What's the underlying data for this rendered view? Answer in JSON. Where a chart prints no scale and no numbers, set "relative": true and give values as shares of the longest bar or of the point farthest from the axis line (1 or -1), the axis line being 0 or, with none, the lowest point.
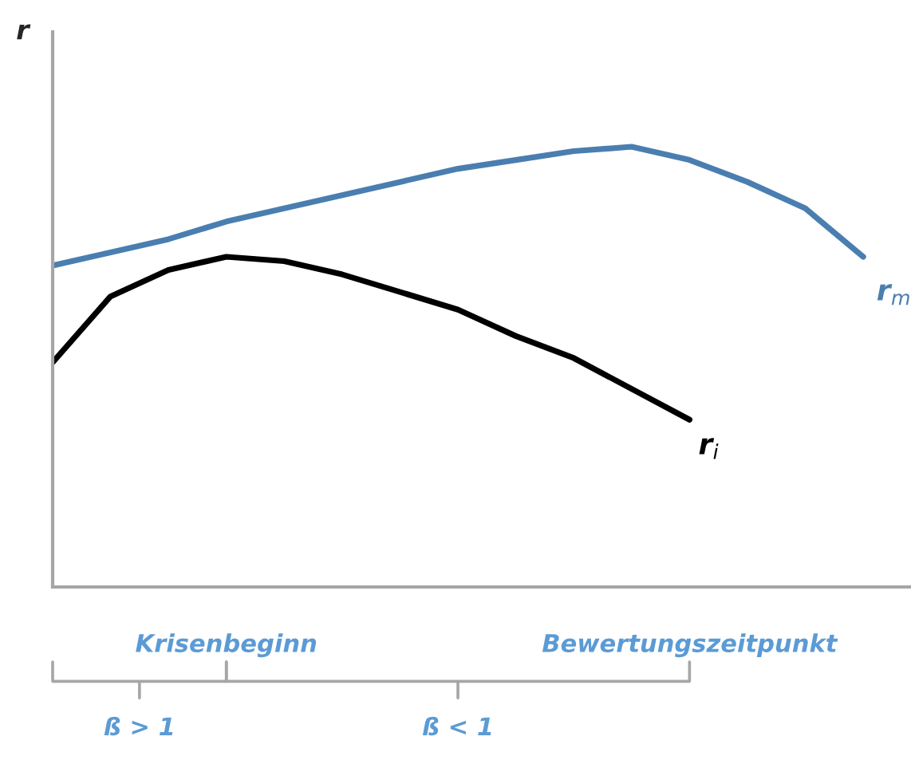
{
  "chart_data": {
    "type": "line",
    "relative": true,
    "ylabel": "r",
    "categories": [
      null,
      null,
      null,
      "Krisenbeginn",
      null,
      null,
      null,
      null,
      null,
      null,
      null,
      "Bewertungszeitpunkt",
      null,
      null,
      null
    ],
    "series": [
      {
        "name": "r$_{m}$",
        "color": "#4a7eb0",
        "values": [
          0.73,
          0.76,
          0.79,
          0.83,
          0.86,
          0.89,
          0.92,
          0.95,
          0.97,
          0.99,
          1.0,
          0.97,
          0.92,
          0.86,
          0.75
        ]
      },
      {
        "name": "r$_{i}$",
        "color": "#000000",
        "values": [
          0.51,
          0.66,
          0.72,
          0.75,
          0.74,
          0.71,
          0.67,
          0.63,
          0.57,
          0.52,
          0.45,
          0.38,
          null,
          null,
          null
        ]
      }
    ],
    "annotations": [
      "ß > 1",
      "ß < 1"
    ],
    "grid": false,
    "legend": false,
    "marker": "none",
    "line_style": "solid"
  }
}
